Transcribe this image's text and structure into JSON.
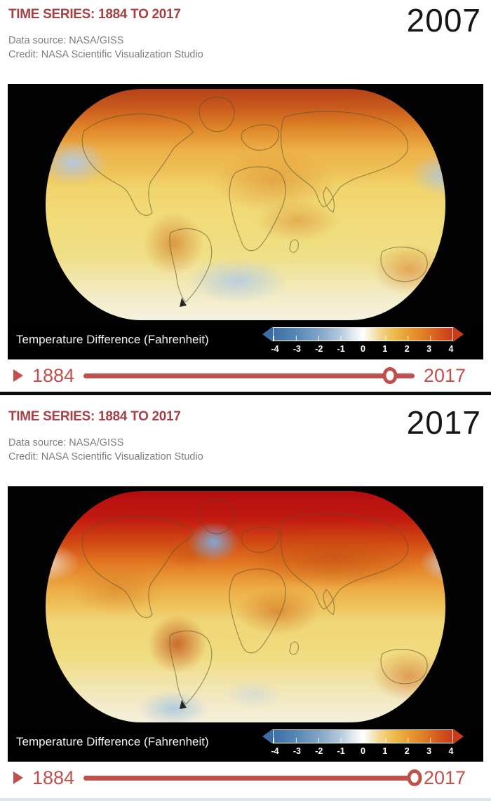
{
  "colorbar": {
    "label": "Temperature Difference (Fahrenheit)",
    "labels": [
      "-4",
      "-3",
      "-2",
      "-1",
      "0",
      "1",
      "2",
      "3",
      "4"
    ],
    "min": -4,
    "max": 4,
    "unit": "Fahrenheit",
    "negative_color": "#3d6fa8",
    "zero_color": "#ffffff",
    "positive_color": "#cb3b1a"
  },
  "panels": [
    {
      "title": "TIME SERIES: 1884 TO 2017",
      "data_source": "Data source: NASA/GISS",
      "credit": "Credit: NASA Scientific Visualization Studio",
      "year": "2007",
      "timeline": {
        "start_year": "1884",
        "end_year": "2017",
        "position_pct": 92.5
      }
    },
    {
      "title": "TIME SERIES: 1884 TO 2017",
      "data_source": "Data source: NASA/GISS",
      "credit": "Credit: NASA Scientific Visualization Studio",
      "year": "2017",
      "timeline": {
        "start_year": "1884",
        "end_year": "2017",
        "position_pct": 100
      }
    }
  ],
  "colors": {
    "title_red": "#a64044",
    "slider_red": "#c14f4b",
    "year_text": "#161616",
    "map_background": "#000000"
  }
}
